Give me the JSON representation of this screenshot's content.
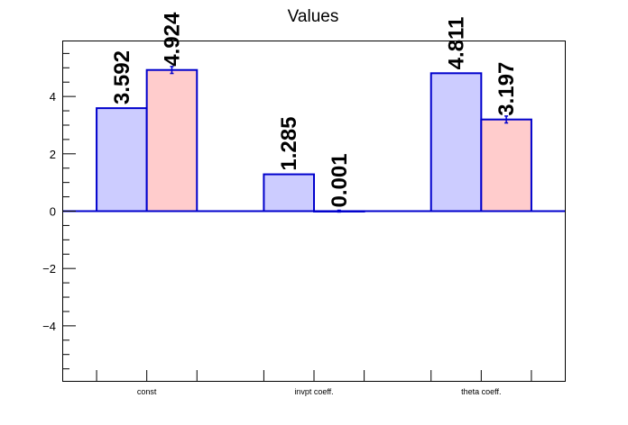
{
  "chart_data": {
    "type": "bar",
    "title": "Values",
    "xlabel": "",
    "ylabel": "",
    "categories": [
      "const",
      "invpt coeff.",
      "theta coeff."
    ],
    "series": [
      {
        "values": [
          3.592,
          1.285,
          4.811
        ],
        "color": "#ccccff",
        "labels": [
          "3.592",
          "1.285",
          "4.811"
        ]
      },
      {
        "values": [
          4.924,
          0.001,
          3.197
        ],
        "color": "#ffcccc",
        "errors": [
          0.12,
          0.03,
          0.12
        ],
        "labels": [
          "4.924",
          "0.001",
          "3.197"
        ]
      }
    ],
    "ylim": [
      -5.92,
      5.92
    ],
    "yticks": [
      -4,
      -2,
      0,
      2,
      4
    ],
    "ytick_labels": [
      "−4",
      "−2",
      "0",
      "2",
      "4"
    ],
    "edge_color": "#0000cc",
    "legend": false,
    "grid": false
  }
}
